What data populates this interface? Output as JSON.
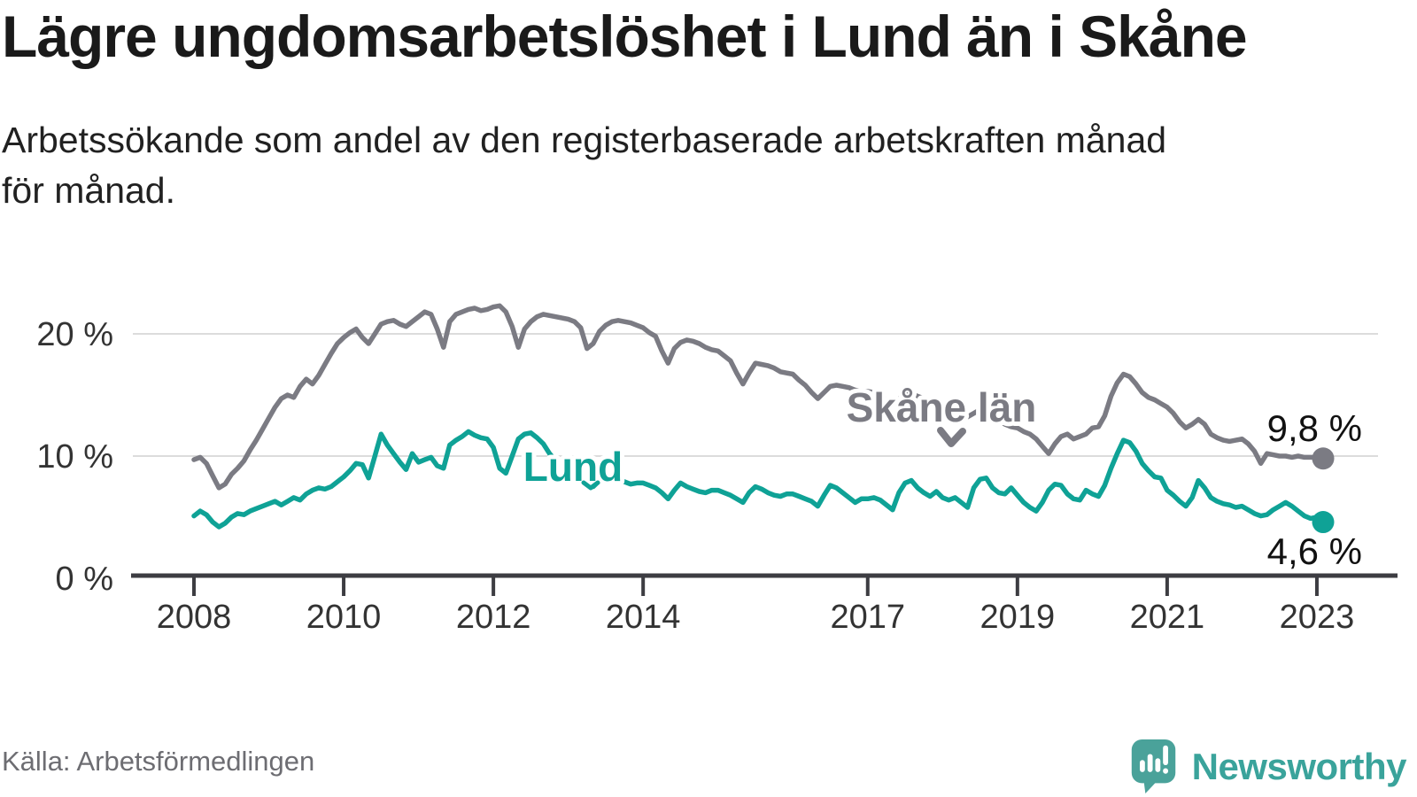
{
  "chart_data": {
    "type": "line",
    "title": "Lägre ungdomsarbetslöshet i Lund än i Skåne",
    "subtitle_lines": [
      "Arbetssökande som andel av den registerbaserade arbetskraften månad",
      "för månad."
    ],
    "unit": "%",
    "frequency": "monthly",
    "x_start": "2008-01",
    "x_end": "2023-02",
    "x_ticks": [
      "2008",
      "2010",
      "2012",
      "2014",
      "2017",
      "2019",
      "2021",
      "2023"
    ],
    "y_ticks": [
      {
        "value": 20,
        "label": "20 %"
      },
      {
        "value": 10,
        "label": "10 %"
      },
      {
        "value": 0,
        "label": "0 %"
      }
    ],
    "ylim": [
      0,
      24
    ],
    "grid": "horizontal",
    "colors": {
      "gridline": "#dcdcdc",
      "axis": "#3d3d42",
      "tick_label": "#333333",
      "end_label": "#111111"
    },
    "series": [
      {
        "name": "Skåne län",
        "color": "#7b7b83",
        "end_label": "9,8 %",
        "last_value": 9.8,
        "values": [
          9.7,
          9.9,
          9.4,
          8.4,
          7.4,
          7.7,
          8.5,
          9.0,
          9.6,
          10.5,
          11.3,
          12.2,
          13.1,
          14.0,
          14.7,
          15.0,
          14.8,
          15.7,
          16.3,
          15.9,
          16.6,
          17.5,
          18.4,
          19.2,
          19.7,
          20.1,
          20.4,
          19.7,
          19.2,
          20.0,
          20.8,
          21.0,
          21.1,
          20.8,
          20.6,
          21.0,
          21.4,
          21.8,
          21.6,
          20.4,
          18.9,
          21.0,
          21.6,
          21.8,
          22.0,
          22.1,
          21.9,
          22.0,
          22.2,
          22.3,
          21.8,
          20.6,
          18.9,
          20.4,
          21.0,
          21.4,
          21.6,
          21.5,
          21.4,
          21.3,
          21.2,
          21.0,
          20.5,
          18.8,
          19.2,
          20.2,
          20.7,
          21.0,
          21.1,
          21.0,
          20.9,
          20.7,
          20.5,
          20.1,
          19.8,
          18.6,
          17.6,
          18.8,
          19.3,
          19.5,
          19.4,
          19.2,
          18.9,
          18.7,
          18.6,
          18.2,
          17.8,
          16.8,
          15.9,
          16.8,
          17.6,
          17.5,
          17.4,
          17.2,
          16.9,
          16.8,
          16.7,
          16.2,
          15.8,
          15.2,
          14.7,
          15.2,
          15.7,
          15.8,
          15.7,
          15.6,
          15.4,
          15.3,
          15.3,
          15.2,
          15.0,
          14.6,
          14.3,
          14.7,
          15.0,
          15.1,
          14.9,
          14.7,
          14.5,
          14.4,
          14.2,
          14.0,
          13.8,
          13.5,
          13.2,
          13.5,
          13.8,
          13.7,
          13.4,
          13.0,
          12.6,
          12.4,
          12.3,
          12.0,
          11.8,
          11.4,
          10.8,
          10.2,
          11.0,
          11.6,
          11.8,
          11.4,
          11.6,
          11.8,
          12.3,
          12.4,
          13.3,
          14.9,
          16.0,
          16.7,
          16.5,
          15.9,
          15.2,
          14.8,
          14.6,
          14.3,
          14.0,
          13.5,
          12.8,
          12.3,
          12.6,
          13.0,
          12.6,
          11.8,
          11.5,
          11.3,
          11.2,
          11.3,
          11.4,
          11.0,
          10.4,
          9.4,
          10.2,
          10.1,
          10.0,
          10.0,
          9.9,
          10.0,
          9.9,
          9.9,
          9.9,
          9.8
        ]
      },
      {
        "name": "Lund",
        "color": "#0fa296",
        "end_label": "4,6 %",
        "last_value": 4.6,
        "values": [
          5.1,
          5.5,
          5.2,
          4.6,
          4.2,
          4.5,
          5.0,
          5.3,
          5.2,
          5.5,
          5.7,
          5.9,
          6.1,
          6.3,
          6.0,
          6.3,
          6.6,
          6.4,
          6.9,
          7.2,
          7.4,
          7.3,
          7.5,
          7.9,
          8.3,
          8.8,
          9.4,
          9.3,
          8.2,
          10.0,
          11.8,
          10.9,
          10.2,
          9.5,
          8.9,
          10.2,
          9.5,
          9.7,
          9.9,
          9.2,
          9.0,
          10.9,
          11.3,
          11.6,
          12.0,
          11.7,
          11.5,
          11.4,
          10.7,
          9.0,
          8.6,
          10.0,
          11.4,
          11.8,
          11.9,
          11.5,
          11.0,
          10.2,
          9.6,
          9.2,
          9.1,
          8.8,
          8.5,
          8.2,
          7.5,
          8.0,
          8.4,
          8.2,
          8.0,
          7.9,
          7.7,
          7.8,
          7.8,
          7.6,
          7.4,
          7.0,
          6.5,
          7.2,
          7.8,
          7.5,
          7.3,
          7.1,
          7.0,
          7.2,
          7.2,
          7.0,
          6.8,
          6.5,
          6.2,
          7.0,
          7.5,
          7.3,
          7.0,
          6.8,
          6.7,
          6.9,
          6.9,
          6.7,
          6.5,
          6.3,
          5.9,
          6.8,
          7.6,
          7.4,
          7.0,
          6.6,
          6.2,
          6.5,
          6.5,
          6.6,
          6.4,
          6.0,
          5.6,
          7.0,
          7.8,
          8.0,
          7.4,
          7.0,
          6.7,
          7.1,
          6.6,
          6.4,
          6.6,
          6.2,
          5.8,
          7.4,
          8.1,
          8.2,
          7.4,
          7.0,
          6.9,
          7.4,
          6.8,
          6.2,
          5.8,
          5.5,
          6.2,
          7.2,
          7.7,
          7.6,
          6.9,
          6.5,
          6.4,
          7.2,
          6.9,
          6.7,
          7.6,
          9.0,
          10.2,
          11.3,
          11.1,
          10.4,
          9.4,
          8.8,
          8.3,
          8.2,
          7.2,
          6.8,
          6.3,
          5.9,
          6.6,
          8.0,
          7.4,
          6.6,
          6.3,
          6.1,
          6.0,
          5.8,
          5.9,
          5.6,
          5.3,
          5.1,
          5.2,
          5.6,
          5.9,
          6.2,
          5.9,
          5.5,
          5.1,
          4.9,
          5.0,
          4.6
        ]
      }
    ]
  },
  "footer": {
    "source": "Källa: Arbetsförmedlingen",
    "brand": "Newsworthy"
  }
}
